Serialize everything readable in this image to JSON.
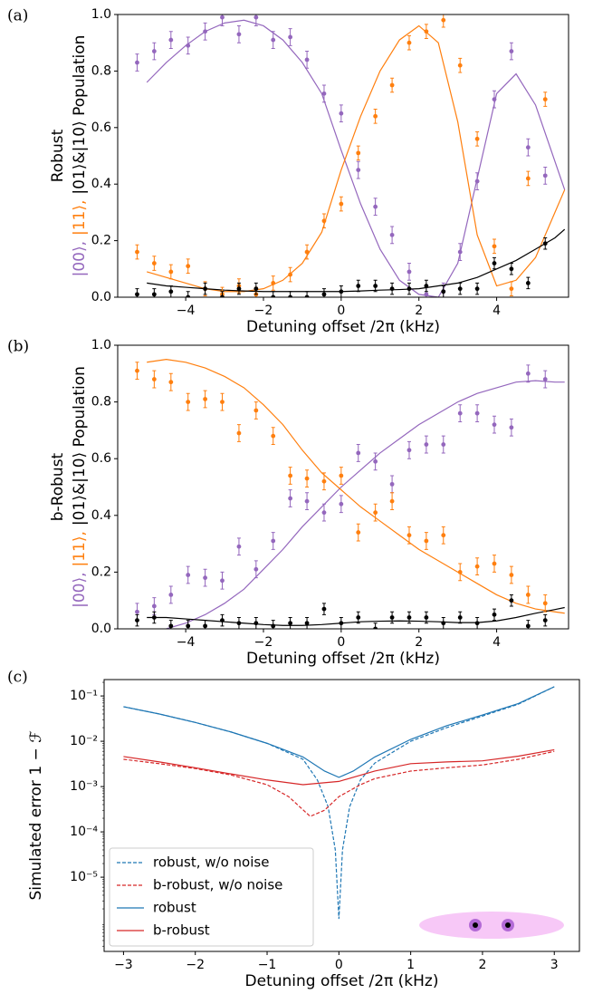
{
  "chart_data": [
    {
      "type": "errorbar",
      "panel_label": "(a)",
      "ylabel": {
        "title": "Robust",
        "parts": [
          {
            "text": "|00⟩,",
            "color": "#9467bd"
          },
          {
            "text": "|11⟩,",
            "color": "#ff7f0e"
          },
          {
            "text": "|01⟩&|10⟩ Population",
            "color": "#000000"
          }
        ]
      },
      "xlabel": "Detuning offset /2π (kHz)",
      "xlim": [
        -5.75,
        5.85
      ],
      "ylim": [
        0,
        1
      ],
      "xticks": [
        {
          "value": -4,
          "label": "−4"
        },
        {
          "value": -2,
          "label": "−2"
        },
        0,
        2,
        4
      ],
      "yticks": [
        {
          "value": 0,
          "label": "0.0"
        },
        0.2,
        0.4,
        0.6,
        0.8,
        {
          "value": 1,
          "label": "1.0"
        }
      ],
      "x": [
        -5.25,
        -4.81,
        -4.38,
        -3.94,
        -3.5,
        -3.06,
        -2.63,
        -2.19,
        -1.75,
        -1.31,
        -0.88,
        -0.44,
        0,
        0.44,
        0.88,
        1.31,
        1.75,
        2.19,
        2.63,
        3.06,
        3.5,
        3.94,
        4.38,
        4.81,
        5.25
      ],
      "fit_x": [
        -5,
        -4.5,
        -4,
        -3.5,
        -3,
        -2.5,
        -2,
        -1.5,
        -1,
        -0.5,
        0,
        0.5,
        1,
        1.5,
        2,
        2.5,
        3,
        3.5,
        4,
        4.5,
        5,
        5.5,
        5.75
      ],
      "series": [
        {
          "color": "#9467bd",
          "error": 0.03,
          "values": [
            0.83,
            0.87,
            0.91,
            0.89,
            0.94,
            0.99,
            0.93,
            0.99,
            0.91,
            0.92,
            0.84,
            0.72,
            0.65,
            0.45,
            0.32,
            0.22,
            0.09,
            0.01,
            0.02,
            0.16,
            0.41,
            0.7,
            0.87,
            0.53,
            0.43
          ],
          "fit": [
            0.76,
            0.83,
            0.89,
            0.94,
            0.97,
            0.98,
            0.96,
            0.91,
            0.83,
            0.72,
            0.52,
            0.33,
            0.17,
            0.06,
            0.01,
            0.0,
            0.12,
            0.42,
            0.72,
            0.79,
            0.68,
            0.48,
            0.38
          ]
        },
        {
          "color": "#ff7f0e",
          "error": 0.025,
          "values": [
            0.16,
            0.12,
            0.09,
            0.11,
            0.03,
            0.01,
            0.04,
            0.01,
            0.05,
            0.08,
            0.16,
            0.27,
            0.33,
            0.51,
            0.64,
            0.75,
            0.9,
            0.94,
            0.98,
            0.82,
            0.56,
            0.18,
            0.03,
            0.42,
            0.7
          ],
          "fit": [
            0.09,
            0.07,
            0.05,
            0.03,
            0.02,
            0.02,
            0.03,
            0.06,
            0.12,
            0.23,
            0.45,
            0.64,
            0.8,
            0.91,
            0.96,
            0.9,
            0.62,
            0.22,
            0.04,
            0.06,
            0.14,
            0.3,
            0.38
          ]
        },
        {
          "color": "#000000",
          "error": 0.02,
          "values": [
            0.01,
            0.01,
            0.02,
            0.0,
            0.03,
            0.0,
            0.03,
            0.03,
            0.0,
            0.0,
            0.0,
            0.01,
            0.02,
            0.04,
            0.04,
            0.03,
            0.03,
            0.04,
            0.02,
            0.03,
            0.03,
            0.12,
            0.1,
            0.05,
            0.19
          ],
          "fit": [
            0.05,
            0.04,
            0.035,
            0.03,
            0.025,
            0.022,
            0.02,
            0.02,
            0.02,
            0.02,
            0.02,
            0.022,
            0.025,
            0.027,
            0.03,
            0.04,
            0.05,
            0.07,
            0.1,
            0.13,
            0.17,
            0.21,
            0.24
          ]
        }
      ]
    },
    {
      "type": "errorbar",
      "panel_label": "(b)",
      "ylabel": {
        "title": "b-Robust",
        "parts": [
          {
            "text": "|00⟩,",
            "color": "#9467bd"
          },
          {
            "text": "|11⟩,",
            "color": "#ff7f0e"
          },
          {
            "text": "|01⟩&|10⟩ Population",
            "color": "#000000"
          }
        ]
      },
      "xlabel": "Detuning offset /2π (kHz)",
      "xlim": [
        -5.75,
        5.85
      ],
      "ylim": [
        0,
        1
      ],
      "xticks": [
        {
          "value": -4,
          "label": "−4"
        },
        {
          "value": -2,
          "label": "−2"
        },
        0,
        2,
        4
      ],
      "yticks": [
        {
          "value": 0,
          "label": "0.0"
        },
        0.2,
        0.4,
        0.6,
        0.8,
        {
          "value": 1,
          "label": "1.0"
        }
      ],
      "x": [
        -5.25,
        -4.81,
        -4.38,
        -3.94,
        -3.5,
        -3.06,
        -2.63,
        -2.19,
        -1.75,
        -1.31,
        -0.88,
        -0.44,
        0,
        0.44,
        0.88,
        1.31,
        1.75,
        2.19,
        2.63,
        3.06,
        3.5,
        3.94,
        4.38,
        4.81,
        5.25
      ],
      "fit_x": [
        -5,
        -4.5,
        -4,
        -3.5,
        -3,
        -2.5,
        -2,
        -1.5,
        -1,
        -0.5,
        0,
        0.5,
        1,
        1.5,
        2,
        2.5,
        3,
        3.5,
        4,
        4.5,
        5,
        5.5,
        5.75
      ],
      "series": [
        {
          "color": "#9467bd",
          "error": 0.03,
          "values": [
            0.06,
            0.08,
            0.12,
            0.19,
            0.18,
            0.17,
            0.29,
            0.21,
            0.31,
            0.46,
            0.45,
            0.41,
            0.44,
            0.62,
            0.59,
            0.51,
            0.63,
            0.65,
            0.65,
            0.76,
            0.76,
            0.72,
            0.71,
            0.9,
            0.88
          ],
          "fit": [
            null,
            0.0,
            0.02,
            0.05,
            0.09,
            0.14,
            0.21,
            0.28,
            0.36,
            0.43,
            0.5,
            0.56,
            0.62,
            0.67,
            0.72,
            0.76,
            0.8,
            0.83,
            0.85,
            0.87,
            0.875,
            0.87,
            0.87
          ]
        },
        {
          "color": "#ff7f0e",
          "error": 0.03,
          "values": [
            0.91,
            0.88,
            0.87,
            0.8,
            0.81,
            0.8,
            0.69,
            0.77,
            0.68,
            0.54,
            0.53,
            0.52,
            0.54,
            0.34,
            0.41,
            0.45,
            0.33,
            0.31,
            0.33,
            0.2,
            0.22,
            0.23,
            0.19,
            0.12,
            0.09
          ],
          "fit": [
            0.94,
            0.95,
            0.94,
            0.92,
            0.89,
            0.85,
            0.79,
            0.72,
            0.63,
            0.55,
            0.49,
            0.43,
            0.38,
            0.33,
            0.28,
            0.24,
            0.2,
            0.16,
            0.12,
            0.09,
            0.07,
            0.06,
            0.055
          ]
        },
        {
          "color": "#000000",
          "error": 0.02,
          "values": [
            0.03,
            0.04,
            0.01,
            0.01,
            0.01,
            0.03,
            0.02,
            0.02,
            0.01,
            0.02,
            0.02,
            0.07,
            0.02,
            0.04,
            0.0,
            0.04,
            0.04,
            0.04,
            0.02,
            0.04,
            0.02,
            0.05,
            0.1,
            0.01,
            0.03
          ],
          "fit": [
            0.04,
            0.04,
            0.035,
            0.03,
            0.025,
            0.02,
            0.015,
            0.012,
            0.012,
            0.015,
            0.02,
            0.025,
            0.027,
            0.028,
            0.027,
            0.025,
            0.022,
            0.022,
            0.028,
            0.04,
            0.055,
            0.068,
            0.075
          ]
        }
      ]
    },
    {
      "type": "line",
      "panel_label": "(c)",
      "ylabel": "Simulated error 1 − ℱ",
      "xlabel": "Detuning offset /2π (kHz)",
      "xlim": [
        -3.27,
        3.35
      ],
      "ylim": [
        2.3e-07,
        0.23
      ],
      "log_y": true,
      "legend": "lower left",
      "xticks": [
        {
          "value": -3,
          "label": "−3"
        },
        {
          "value": -2,
          "label": "−2"
        },
        {
          "value": -1,
          "label": "−1"
        },
        0,
        1,
        2,
        3
      ],
      "yticks": [
        {
          "value": 0.1,
          "label": "10⁻¹"
        },
        {
          "value": 0.01,
          "label": "10⁻²"
        },
        {
          "value": 0.001,
          "label": "10⁻³"
        },
        {
          "value": 0.0001,
          "label": "10⁻⁴"
        },
        {
          "value": 1e-05,
          "label": "10⁻⁵"
        }
      ],
      "series": [
        {
          "name": "robust, w/o noise",
          "color": "#1f77b4",
          "linestyle": "dashed",
          "x": [
            -3,
            -2.5,
            -2,
            -1.5,
            -1,
            -0.5,
            -0.3,
            -0.15,
            -0.05,
            0,
            0.05,
            0.15,
            0.3,
            0.5,
            1,
            1.5,
            2,
            2.5,
            3
          ],
          "values": [
            0.058,
            0.04,
            0.026,
            0.016,
            0.009,
            0.004,
            0.0014,
            0.00036,
            4e-05,
            1.2e-06,
            4e-05,
            0.00036,
            0.0014,
            0.0033,
            0.01,
            0.02,
            0.036,
            0.066,
            0.16
          ]
        },
        {
          "name": "b-robust, w/o noise",
          "color": "#d62728",
          "linestyle": "dashed",
          "x": [
            -3,
            -2.5,
            -2,
            -1.5,
            -1,
            -0.7,
            -0.4,
            -0.2,
            0,
            0.3,
            0.5,
            1,
            1.5,
            2,
            2.5,
            3
          ],
          "values": [
            0.004,
            0.0032,
            0.0025,
            0.0018,
            0.0011,
            0.0006,
            0.00022,
            0.0003,
            0.0006,
            0.0011,
            0.0015,
            0.0022,
            0.0026,
            0.003,
            0.004,
            0.006
          ]
        },
        {
          "name": "robust",
          "color": "#1f77b4",
          "linestyle": "solid",
          "x": [
            -3,
            -2.5,
            -2,
            -1.5,
            -1,
            -0.5,
            -0.2,
            0,
            0.2,
            0.5,
            1,
            1.5,
            2,
            2.5,
            3
          ],
          "values": [
            0.058,
            0.04,
            0.026,
            0.016,
            0.009,
            0.0045,
            0.0022,
            0.0016,
            0.0022,
            0.0045,
            0.011,
            0.022,
            0.038,
            0.068,
            0.16
          ]
        },
        {
          "name": "b-robust",
          "color": "#d62728",
          "linestyle": "solid",
          "x": [
            -3,
            -2.5,
            -2,
            -1.5,
            -1,
            -0.5,
            0,
            0.5,
            1,
            1.5,
            2,
            2.5,
            3
          ],
          "values": [
            0.0046,
            0.0035,
            0.0026,
            0.0019,
            0.0014,
            0.0011,
            0.0013,
            0.0022,
            0.0032,
            0.0035,
            0.0037,
            0.0047,
            0.0065
          ]
        }
      ]
    }
  ]
}
